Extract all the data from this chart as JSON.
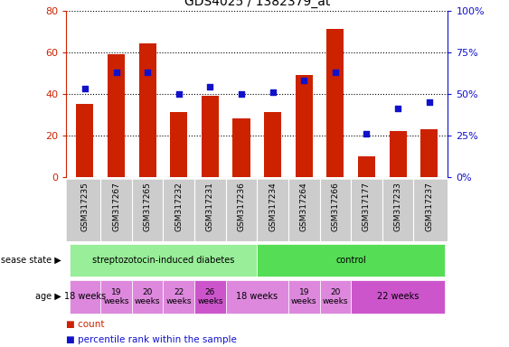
{
  "title": "GDS4025 / 1382379_at",
  "samples": [
    "GSM317235",
    "GSM317267",
    "GSM317265",
    "GSM317232",
    "GSM317231",
    "GSM317236",
    "GSM317234",
    "GSM317264",
    "GSM317266",
    "GSM317177",
    "GSM317233",
    "GSM317237"
  ],
  "counts": [
    35,
    59,
    64,
    31,
    39,
    28,
    31,
    49,
    71,
    10,
    22,
    23
  ],
  "percentiles": [
    53,
    63,
    63,
    50,
    54,
    50,
    51,
    58,
    63,
    26,
    41,
    45
  ],
  "bar_color": "#cc2200",
  "dot_color": "#1111cc",
  "left_ylim": [
    0,
    80
  ],
  "right_ylim": [
    0,
    100
  ],
  "left_yticks": [
    0,
    20,
    40,
    60,
    80
  ],
  "right_yticks": [
    0,
    25,
    50,
    75,
    100
  ],
  "right_yticklabels": [
    "0%",
    "25%",
    "50%",
    "75%",
    "100%"
  ],
  "disease_state_groups": [
    {
      "label": "streptozotocin-induced diabetes",
      "cols": [
        0,
        1,
        2,
        3,
        4,
        5
      ],
      "color": "#99ee99"
    },
    {
      "label": "control",
      "cols": [
        6,
        7,
        8,
        9,
        10,
        11
      ],
      "color": "#55dd55"
    }
  ],
  "age_groups": [
    {
      "label": "18 weeks",
      "cols": [
        0
      ],
      "color": "#dd88dd",
      "fontsize": 7
    },
    {
      "label": "19\nweeks",
      "cols": [
        1
      ],
      "color": "#dd88dd",
      "fontsize": 6.5
    },
    {
      "label": "20\nweeks",
      "cols": [
        2
      ],
      "color": "#dd88dd",
      "fontsize": 6.5
    },
    {
      "label": "22\nweeks",
      "cols": [
        3
      ],
      "color": "#dd88dd",
      "fontsize": 6.5
    },
    {
      "label": "26\nweeks",
      "cols": [
        4
      ],
      "color": "#cc55cc",
      "fontsize": 6.5
    },
    {
      "label": "18 weeks",
      "cols": [
        5,
        6
      ],
      "color": "#dd88dd",
      "fontsize": 7
    },
    {
      "label": "19\nweeks",
      "cols": [
        7
      ],
      "color": "#dd88dd",
      "fontsize": 6.5
    },
    {
      "label": "20\nweeks",
      "cols": [
        8
      ],
      "color": "#dd88dd",
      "fontsize": 6.5
    },
    {
      "label": "22 weeks",
      "cols": [
        9,
        10,
        11
      ],
      "color": "#cc55cc",
      "fontsize": 7
    }
  ],
  "xtick_bg": "#cccccc",
  "fig_bg": "#ffffff"
}
